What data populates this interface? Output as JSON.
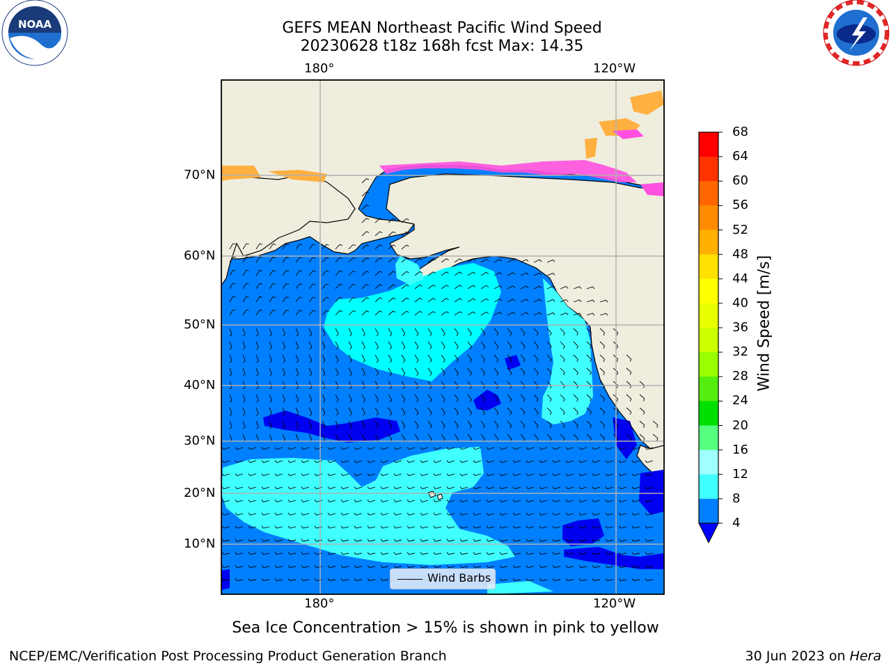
{
  "header": {
    "title_line1": "GEFS MEAN Northeast Pacific Wind Speed",
    "title_line2": "20230628 t18z 168h fcst   Max: 14.35"
  },
  "logos": {
    "left": "noaa-logo",
    "right": "national-weather-service-logo"
  },
  "map": {
    "projection": "mercator",
    "lon_ticks_top": [
      "180°",
      "120°W"
    ],
    "lon_ticks_bottom": [
      "180°",
      "120°W"
    ],
    "lat_ticks": [
      "70°N",
      "60°N",
      "50°N",
      "40°N",
      "30°N",
      "20°N",
      "10°N"
    ],
    "legend_label": "Wind Barbs",
    "colors": {
      "land": "#efedde",
      "ocean_4_8": "#0080ff",
      "ocean_8_12": "#00ffff",
      "ocean_12_16": "#40ffff",
      "ocean_below_4": "#0000f0",
      "sea_ice_pink": "#ff50e0",
      "sea_ice_orange": "#ffb040"
    }
  },
  "colorbar": {
    "label": "Wind Speed [m/s]",
    "ticks": [
      "68",
      "64",
      "60",
      "56",
      "52",
      "48",
      "44",
      "40",
      "36",
      "32",
      "28",
      "24",
      "20",
      "16",
      "12",
      "8",
      "4"
    ],
    "colors": [
      "#ff0000",
      "#ff3300",
      "#ff6600",
      "#ff8c00",
      "#ffb000",
      "#ffe000",
      "#ffff00",
      "#e8ff00",
      "#ccff00",
      "#99ff00",
      "#55ee11",
      "#00e000",
      "#55ff80",
      "#a0ffff",
      "#40ffff",
      "#00ffff",
      "#0080ff"
    ],
    "under_color": "#0000ff"
  },
  "notes": {
    "sea_ice": "Sea Ice Concentration > 15% is shown in pink to yellow"
  },
  "footer": {
    "left": "NCEP/EMC/Verification Post Processing Product Generation Branch",
    "right_prefix": "30 Jun 2023 on ",
    "right_machine": "Hera"
  }
}
